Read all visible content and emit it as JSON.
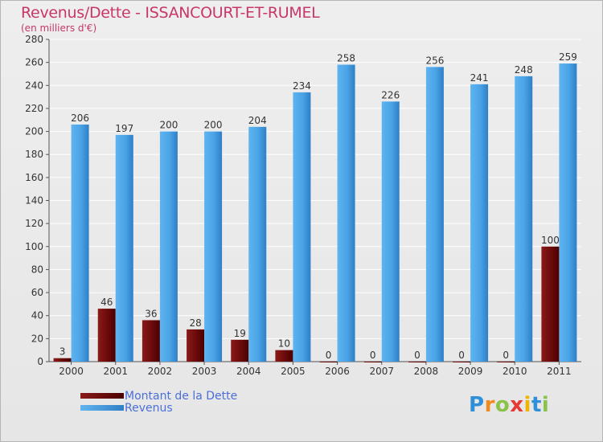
{
  "title": "Revenus/Dette - ISSANCOURT-ET-RUMEL",
  "subtitle": "(en milliers d'€)",
  "logo": {
    "letters": [
      {
        "char": "P",
        "color": "#2f8fd8"
      },
      {
        "char": "r",
        "color": "#f08a1e"
      },
      {
        "char": "o",
        "color": "#8bc34a"
      },
      {
        "char": "x",
        "color": "#e53935"
      },
      {
        "char": "i",
        "color": "#f0b400"
      },
      {
        "char": "t",
        "color": "#2f8fd8"
      },
      {
        "char": "i",
        "color": "#8bc34a"
      }
    ]
  },
  "chart_data": {
    "type": "bar",
    "title": "Revenus/Dette - ISSANCOURT-ET-RUMEL",
    "subtitle": "(en milliers d'€)",
    "categories": [
      "2000",
      "2001",
      "2002",
      "2003",
      "2004",
      "2005",
      "2006",
      "2007",
      "2008",
      "2009",
      "2010",
      "2011"
    ],
    "series": [
      {
        "name": "Montant de la Dette",
        "color": "#6b0a0a",
        "values": [
          3,
          46,
          36,
          28,
          19,
          10,
          0,
          0,
          0,
          0,
          0,
          100
        ]
      },
      {
        "name": "Revenus",
        "color": "#4aa3e6",
        "values": [
          206,
          197,
          200,
          200,
          204,
          234,
          258,
          226,
          256,
          241,
          248,
          259
        ]
      }
    ],
    "ylim": [
      0,
      280
    ],
    "yticks": [
      0,
      20,
      40,
      60,
      80,
      100,
      120,
      140,
      160,
      180,
      200,
      220,
      240,
      260,
      280
    ],
    "grid": true,
    "legend": "bottom-left"
  }
}
